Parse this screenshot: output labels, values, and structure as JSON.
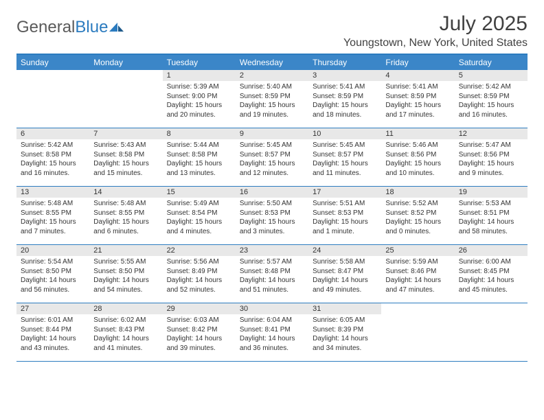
{
  "logo": {
    "part1": "General",
    "part2": "Blue"
  },
  "title": "July 2025",
  "location": "Youngstown, New York, United States",
  "day_names": [
    "Sunday",
    "Monday",
    "Tuesday",
    "Wednesday",
    "Thursday",
    "Friday",
    "Saturday"
  ],
  "colors": {
    "accent": "#2b7bbf",
    "header_bg": "#3b86c8",
    "daynum_bg": "#e8e8e8",
    "text": "#333333",
    "title_text": "#404040",
    "logo_gray": "#5a5a5a"
  },
  "weeks": [
    [
      {
        "empty": true
      },
      {
        "empty": true
      },
      {
        "n": "1",
        "sr": "Sunrise: 5:39 AM",
        "ss": "Sunset: 9:00 PM",
        "dl": "Daylight: 15 hours and 20 minutes."
      },
      {
        "n": "2",
        "sr": "Sunrise: 5:40 AM",
        "ss": "Sunset: 8:59 PM",
        "dl": "Daylight: 15 hours and 19 minutes."
      },
      {
        "n": "3",
        "sr": "Sunrise: 5:41 AM",
        "ss": "Sunset: 8:59 PM",
        "dl": "Daylight: 15 hours and 18 minutes."
      },
      {
        "n": "4",
        "sr": "Sunrise: 5:41 AM",
        "ss": "Sunset: 8:59 PM",
        "dl": "Daylight: 15 hours and 17 minutes."
      },
      {
        "n": "5",
        "sr": "Sunrise: 5:42 AM",
        "ss": "Sunset: 8:59 PM",
        "dl": "Daylight: 15 hours and 16 minutes."
      }
    ],
    [
      {
        "n": "6",
        "sr": "Sunrise: 5:42 AM",
        "ss": "Sunset: 8:58 PM",
        "dl": "Daylight: 15 hours and 16 minutes."
      },
      {
        "n": "7",
        "sr": "Sunrise: 5:43 AM",
        "ss": "Sunset: 8:58 PM",
        "dl": "Daylight: 15 hours and 15 minutes."
      },
      {
        "n": "8",
        "sr": "Sunrise: 5:44 AM",
        "ss": "Sunset: 8:58 PM",
        "dl": "Daylight: 15 hours and 13 minutes."
      },
      {
        "n": "9",
        "sr": "Sunrise: 5:45 AM",
        "ss": "Sunset: 8:57 PM",
        "dl": "Daylight: 15 hours and 12 minutes."
      },
      {
        "n": "10",
        "sr": "Sunrise: 5:45 AM",
        "ss": "Sunset: 8:57 PM",
        "dl": "Daylight: 15 hours and 11 minutes."
      },
      {
        "n": "11",
        "sr": "Sunrise: 5:46 AM",
        "ss": "Sunset: 8:56 PM",
        "dl": "Daylight: 15 hours and 10 minutes."
      },
      {
        "n": "12",
        "sr": "Sunrise: 5:47 AM",
        "ss": "Sunset: 8:56 PM",
        "dl": "Daylight: 15 hours and 9 minutes."
      }
    ],
    [
      {
        "n": "13",
        "sr": "Sunrise: 5:48 AM",
        "ss": "Sunset: 8:55 PM",
        "dl": "Daylight: 15 hours and 7 minutes."
      },
      {
        "n": "14",
        "sr": "Sunrise: 5:48 AM",
        "ss": "Sunset: 8:55 PM",
        "dl": "Daylight: 15 hours and 6 minutes."
      },
      {
        "n": "15",
        "sr": "Sunrise: 5:49 AM",
        "ss": "Sunset: 8:54 PM",
        "dl": "Daylight: 15 hours and 4 minutes."
      },
      {
        "n": "16",
        "sr": "Sunrise: 5:50 AM",
        "ss": "Sunset: 8:53 PM",
        "dl": "Daylight: 15 hours and 3 minutes."
      },
      {
        "n": "17",
        "sr": "Sunrise: 5:51 AM",
        "ss": "Sunset: 8:53 PM",
        "dl": "Daylight: 15 hours and 1 minute."
      },
      {
        "n": "18",
        "sr": "Sunrise: 5:52 AM",
        "ss": "Sunset: 8:52 PM",
        "dl": "Daylight: 15 hours and 0 minutes."
      },
      {
        "n": "19",
        "sr": "Sunrise: 5:53 AM",
        "ss": "Sunset: 8:51 PM",
        "dl": "Daylight: 14 hours and 58 minutes."
      }
    ],
    [
      {
        "n": "20",
        "sr": "Sunrise: 5:54 AM",
        "ss": "Sunset: 8:50 PM",
        "dl": "Daylight: 14 hours and 56 minutes."
      },
      {
        "n": "21",
        "sr": "Sunrise: 5:55 AM",
        "ss": "Sunset: 8:50 PM",
        "dl": "Daylight: 14 hours and 54 minutes."
      },
      {
        "n": "22",
        "sr": "Sunrise: 5:56 AM",
        "ss": "Sunset: 8:49 PM",
        "dl": "Daylight: 14 hours and 52 minutes."
      },
      {
        "n": "23",
        "sr": "Sunrise: 5:57 AM",
        "ss": "Sunset: 8:48 PM",
        "dl": "Daylight: 14 hours and 51 minutes."
      },
      {
        "n": "24",
        "sr": "Sunrise: 5:58 AM",
        "ss": "Sunset: 8:47 PM",
        "dl": "Daylight: 14 hours and 49 minutes."
      },
      {
        "n": "25",
        "sr": "Sunrise: 5:59 AM",
        "ss": "Sunset: 8:46 PM",
        "dl": "Daylight: 14 hours and 47 minutes."
      },
      {
        "n": "26",
        "sr": "Sunrise: 6:00 AM",
        "ss": "Sunset: 8:45 PM",
        "dl": "Daylight: 14 hours and 45 minutes."
      }
    ],
    [
      {
        "n": "27",
        "sr": "Sunrise: 6:01 AM",
        "ss": "Sunset: 8:44 PM",
        "dl": "Daylight: 14 hours and 43 minutes."
      },
      {
        "n": "28",
        "sr": "Sunrise: 6:02 AM",
        "ss": "Sunset: 8:43 PM",
        "dl": "Daylight: 14 hours and 41 minutes."
      },
      {
        "n": "29",
        "sr": "Sunrise: 6:03 AM",
        "ss": "Sunset: 8:42 PM",
        "dl": "Daylight: 14 hours and 39 minutes."
      },
      {
        "n": "30",
        "sr": "Sunrise: 6:04 AM",
        "ss": "Sunset: 8:41 PM",
        "dl": "Daylight: 14 hours and 36 minutes."
      },
      {
        "n": "31",
        "sr": "Sunrise: 6:05 AM",
        "ss": "Sunset: 8:39 PM",
        "dl": "Daylight: 14 hours and 34 minutes."
      },
      {
        "empty": true
      },
      {
        "empty": true
      }
    ]
  ]
}
